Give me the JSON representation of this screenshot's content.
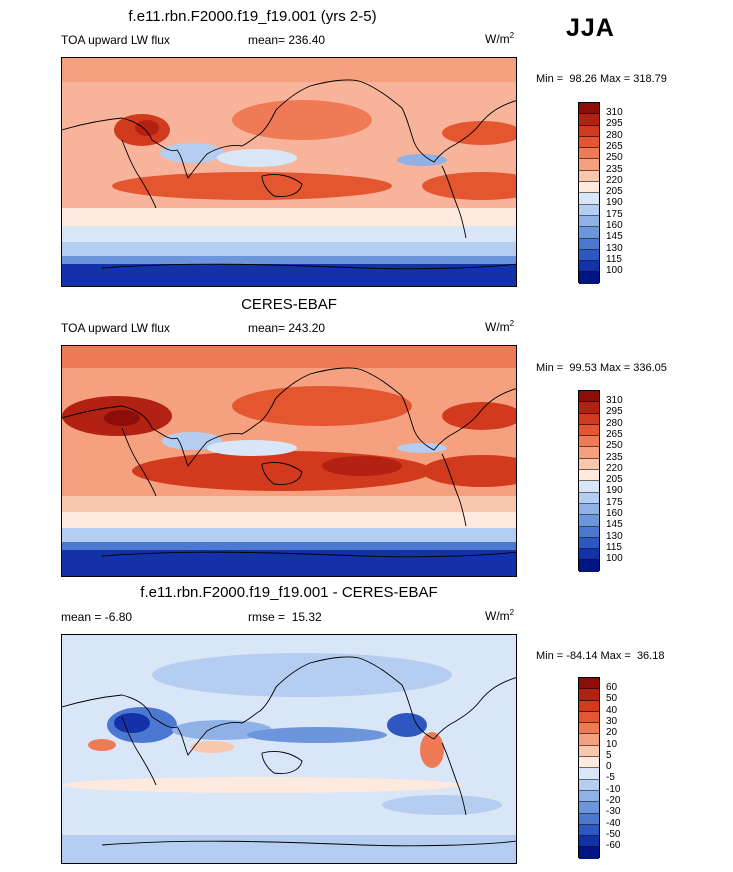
{
  "season": "JJA",
  "panels": [
    {
      "title": "f.e11.rbn.F2000.f19_f19.001 (yrs 2-5)",
      "left_label": "TOA upward LW flux",
      "center_prefix": "mean=",
      "center_value": "236.40",
      "units_base": "W/m",
      "units_sup": "2",
      "min_label": "Min =",
      "min_value": "98.26",
      "max_label": "Max =",
      "max_value": "318.79",
      "levels": [
        "310",
        "295",
        "280",
        "265",
        "250",
        "235",
        "220",
        "205",
        "190",
        "175",
        "160",
        "145",
        "130",
        "115",
        "100"
      ],
      "colors": [
        "#8c0d0a",
        "#b32113",
        "#d23a1d",
        "#e3562f",
        "#ef7a55",
        "#f5a07f",
        "#f9c6ae",
        "#fde9de",
        "#d9e6f7",
        "#b5cdf0",
        "#8fb1e6",
        "#6c95dc",
        "#4d78d2",
        "#2e57c2",
        "#1432a8",
        "#001482"
      ]
    },
    {
      "title": "CERES-EBAF",
      "left_label": "TOA upward LW flux",
      "center_prefix": "mean=",
      "center_value": "243.20",
      "units_base": "W/m",
      "units_sup": "2",
      "min_label": "Min =",
      "min_value": "99.53",
      "max_label": "Max =",
      "max_value": "336.05",
      "levels": [
        "310",
        "295",
        "280",
        "265",
        "250",
        "235",
        "220",
        "205",
        "190",
        "175",
        "160",
        "145",
        "130",
        "115",
        "100"
      ],
      "colors": [
        "#8c0d0a",
        "#b32113",
        "#d23a1d",
        "#e3562f",
        "#ef7a55",
        "#f5a07f",
        "#f9c6ae",
        "#fde9de",
        "#d9e6f7",
        "#b5cdf0",
        "#8fb1e6",
        "#6c95dc",
        "#4d78d2",
        "#2e57c2",
        "#1432a8",
        "#001482"
      ]
    },
    {
      "title": "f.e11.rbn.F2000.f19_f19.001 - CERES-EBAF",
      "left_label": "mean =  -6.80",
      "center_prefix": "rmse =",
      "center_value": "15.32",
      "units_base": "W/m",
      "units_sup": "2",
      "min_label": "Min =",
      "min_value": "-84.14",
      "max_label": "Max =",
      "max_value": "36.18",
      "levels": [
        "60",
        "50",
        "40",
        "30",
        "20",
        "10",
        "5",
        "0",
        "-5",
        "-10",
        "-20",
        "-30",
        "-40",
        "-50",
        "-60"
      ],
      "colors": [
        "#8c0d0a",
        "#b32113",
        "#d23a1d",
        "#e3562f",
        "#ef7a55",
        "#f5a07f",
        "#f9c6ae",
        "#fde9de",
        "#d9e6f7",
        "#b5cdf0",
        "#8fb1e6",
        "#6c95dc",
        "#4d78d2",
        "#2e57c2",
        "#1432a8",
        "#001482"
      ]
    }
  ]
}
